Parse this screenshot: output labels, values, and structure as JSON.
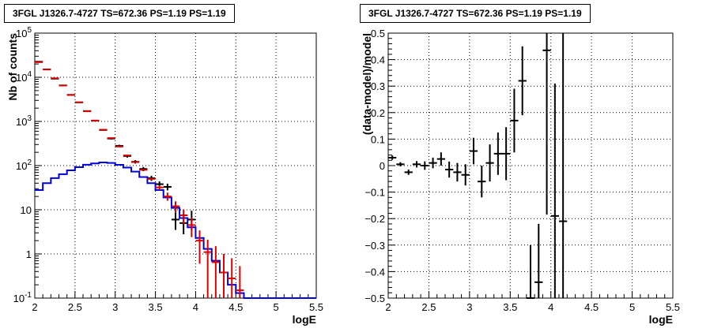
{
  "chart_data": [
    {
      "type": "line",
      "title": "3FGL J1326.7-4727 TS=672.36 PS=1.19 PS=1.19",
      "xlabel": "logE",
      "ylabel": "Nb of counts",
      "xlim": [
        2,
        5.5
      ],
      "ylim": [
        0.1,
        100000
      ],
      "yscale": "log",
      "grid": true,
      "x_ticks": [
        "2",
        "2.5",
        "3",
        "3.5",
        "4",
        "4.5",
        "5",
        "5.5"
      ],
      "y_ticks": [
        "10^-1",
        "1",
        "10",
        "10^2",
        "10^3",
        "10^4",
        "10^5"
      ],
      "colors": {
        "data": "#000000",
        "model": "#dd0000",
        "component": "#0000dd"
      },
      "bin_edges": [
        2.0,
        2.1,
        2.2,
        2.3,
        2.4,
        2.5,
        2.6,
        2.7,
        2.8,
        2.9,
        3.0,
        3.1,
        3.2,
        3.3,
        3.4,
        3.5,
        3.6,
        3.7,
        3.8,
        3.9,
        4.0,
        4.1,
        4.2,
        4.3,
        4.4,
        4.5,
        4.6,
        4.7,
        4.8,
        4.9,
        5.0,
        5.1,
        5.2,
        5.3,
        5.4,
        5.5
      ],
      "series": [
        {
          "kind": "model-points",
          "x": [
            2.05,
            2.15,
            2.25,
            2.35,
            2.45,
            2.55,
            2.65,
            2.75,
            2.85,
            2.95,
            3.05,
            3.15,
            3.25,
            3.35,
            3.45,
            3.55,
            3.65,
            3.75,
            3.85,
            3.95,
            4.05,
            4.15,
            4.25,
            4.35,
            4.45,
            4.55
          ],
          "y": [
            22000,
            15000,
            9500,
            6500,
            4000,
            2700,
            1700,
            1050,
            650,
            420,
            270,
            170,
            120,
            80,
            50,
            32,
            20,
            12,
            7.5,
            4.5,
            2.0,
            1.1,
            0.65,
            0.38,
            0.28,
            0.15
          ],
          "yerr_lo": [
            0,
            0,
            0,
            0,
            0,
            0,
            0,
            0,
            0,
            0,
            0,
            0,
            0,
            0,
            0,
            4,
            4,
            3.5,
            2.7,
            2.1,
            1.4,
            1.0,
            0.6,
            0.3,
            0.2,
            0.1
          ],
          "yerr_hi": [
            0,
            0,
            0,
            0,
            0,
            0,
            0,
            0,
            0,
            0,
            0,
            0,
            0,
            0,
            0,
            4,
            4.5,
            3.5,
            2.7,
            2.1,
            1.4,
            1.0,
            0.85,
            0.62,
            0.52,
            0.38
          ]
        },
        {
          "kind": "data-points",
          "x": [
            2.05,
            2.15,
            2.25,
            2.35,
            2.45,
            2.55,
            2.65,
            2.75,
            2.85,
            2.95,
            3.05,
            3.15,
            3.25,
            3.35,
            3.45,
            3.55,
            3.65,
            3.75,
            3.85,
            3.95
          ],
          "y": [
            22500,
            15100,
            9300,
            6550,
            3980,
            2710,
            1720,
            1040,
            640,
            410,
            280,
            165,
            122,
            84,
            52,
            38,
            33,
            6,
            5,
            6
          ],
          "yerr_lo": [
            150,
            120,
            95,
            80,
            63,
            52,
            41,
            32,
            25,
            20,
            17,
            13,
            11,
            9,
            7,
            6,
            5.5,
            2.5,
            2.2,
            2.5
          ],
          "yerr_hi": [
            150,
            120,
            95,
            80,
            63,
            52,
            41,
            32,
            25,
            20,
            17,
            13,
            11,
            9,
            7,
            6,
            6,
            3.5,
            3.3,
            3.5
          ]
        },
        {
          "kind": "component-histogram",
          "values": [
            28,
            40,
            52,
            64,
            78,
            92,
            105,
            112,
            118,
            115,
            104,
            90,
            73,
            55,
            40,
            28,
            19,
            11,
            6.5,
            4,
            2.3,
            1.3,
            0.7,
            0.38,
            0.2,
            0.13,
            0.1,
            0.1,
            0.1,
            0.1,
            0.1,
            0.1,
            0.1,
            0.1,
            0.1
          ]
        }
      ]
    },
    {
      "type": "scatter",
      "title": "3FGL J1326.7-4727 TS=672.36 PS=1.19 PS=1.19",
      "xlabel": "logE",
      "ylabel": "(data-model)/model",
      "xlim": [
        2,
        5.5
      ],
      "ylim": [
        -0.5,
        0.5
      ],
      "grid": true,
      "x_ticks": [
        "2",
        "2.5",
        "3",
        "3.5",
        "4",
        "4.5",
        "5",
        "5.5"
      ],
      "y_ticks": [
        "-0.5",
        "-0.4",
        "-0.3",
        "-0.2",
        "-0.1",
        "0",
        "0.1",
        "0.2",
        "0.3",
        "0.4",
        "0.5"
      ],
      "x": [
        2.05,
        2.15,
        2.25,
        2.35,
        2.45,
        2.55,
        2.65,
        2.75,
        2.85,
        2.95,
        3.05,
        3.15,
        3.25,
        3.35,
        3.45,
        3.55,
        3.65,
        3.75,
        3.85,
        3.95,
        4.05,
        4.15
      ],
      "y": [
        0.03,
        0.005,
        -0.025,
        0.005,
        0.0,
        0.01,
        0.025,
        -0.015,
        -0.025,
        -0.035,
        0.055,
        -0.06,
        0.01,
        0.045,
        0.045,
        0.17,
        0.32,
        -0.5,
        -0.44,
        0.435,
        -0.19,
        -0.21
      ],
      "yerr": [
        0.008,
        0.008,
        0.01,
        0.012,
        0.016,
        0.02,
        0.025,
        0.03,
        0.035,
        0.04,
        0.05,
        0.06,
        0.07,
        0.08,
        0.1,
        0.12,
        0.13,
        0.2,
        0.22,
        0.62,
        0.5,
        0.8
      ]
    }
  ]
}
